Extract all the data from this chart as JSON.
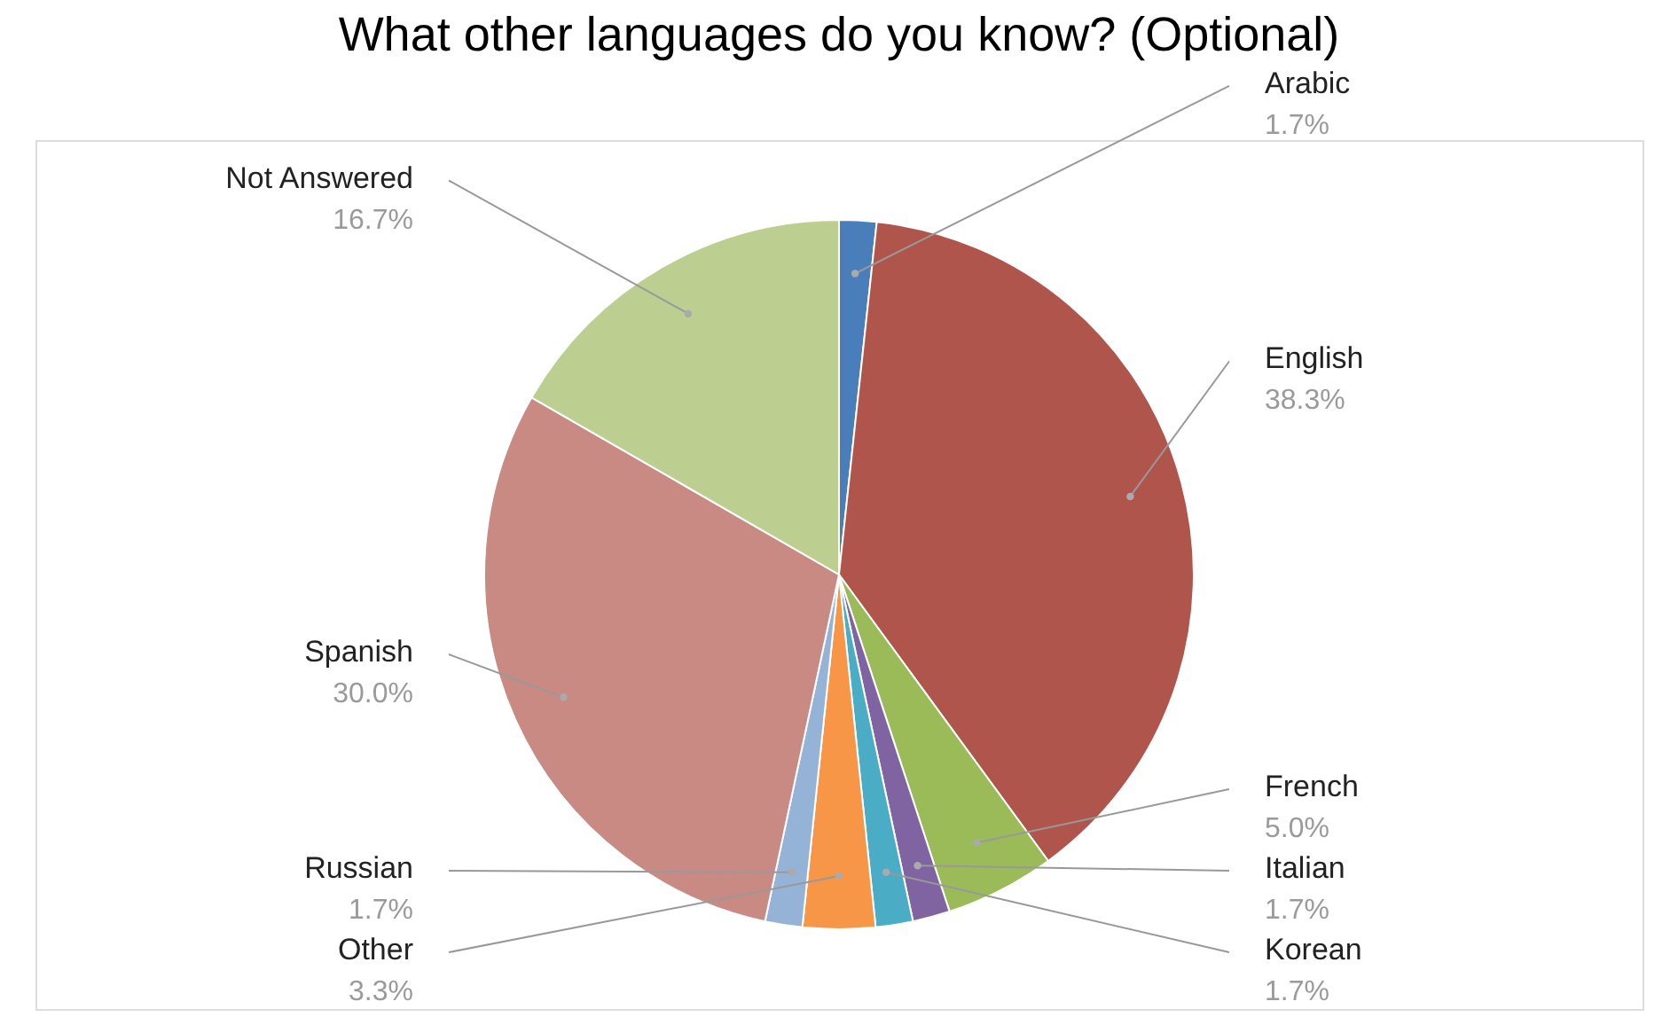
{
  "chart_data": {
    "type": "pie",
    "title": "What other languages do you know? (Optional)",
    "categories": [
      "Arabic",
      "English",
      "French",
      "Italian",
      "Korean",
      "Other",
      "Russian",
      "Spanish",
      "Not Answered"
    ],
    "values": [
      1.7,
      38.3,
      5.0,
      1.7,
      1.7,
      3.3,
      1.7,
      30.0,
      16.7
    ],
    "value_labels": [
      "1.7%",
      "38.3%",
      "5.0%",
      "1.7%",
      "1.7%",
      "3.3%",
      "1.7%",
      "30.0%",
      "16.7%"
    ],
    "colors": [
      "#4a7ebb",
      "#b0554c",
      "#9bbb59",
      "#8064a2",
      "#4bacc6",
      "#f79646",
      "#95b3d7",
      "#c98a84",
      "#bccf91"
    ],
    "legend": false
  }
}
